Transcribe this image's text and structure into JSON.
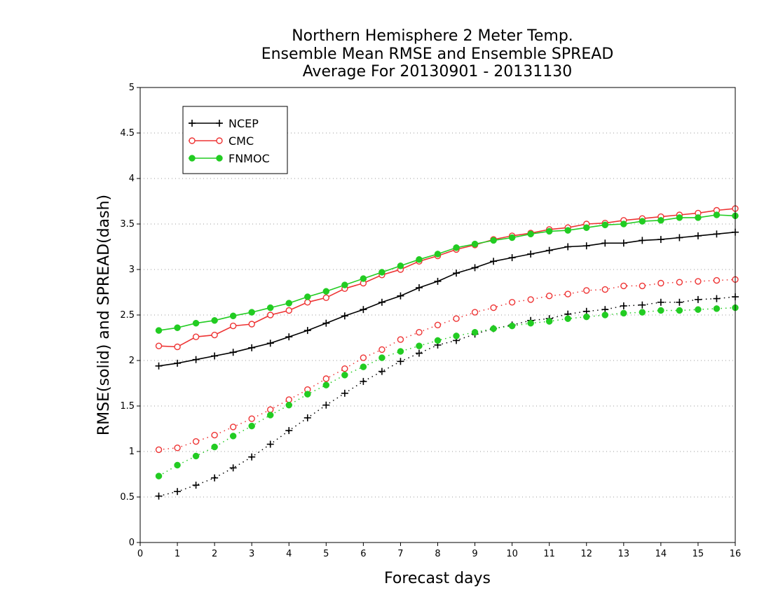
{
  "chart_data": {
    "type": "line",
    "title_lines": [
      "Northern Hemisphere 2 Meter Temp.",
      "Ensemble Mean RMSE and Ensemble SPREAD",
      "Average For 20130901 - 20131130"
    ],
    "xlabel": "Forecast days",
    "ylabel": "RMSE(solid) and SPREAD(dash)",
    "xlim": [
      0,
      16
    ],
    "ylim": [
      0,
      5
    ],
    "x_ticks": [
      "0",
      "1",
      "2",
      "3",
      "4",
      "5",
      "6",
      "7",
      "8",
      "9",
      "10",
      "11",
      "12",
      "13",
      "14",
      "15",
      "16"
    ],
    "y_ticks": [
      "0",
      "0.5",
      "1",
      "1.5",
      "2",
      "2.5",
      "3",
      "3.5",
      "4",
      "4.5",
      "5"
    ],
    "grid": "horizontal dotted",
    "legend_position": "top-left",
    "legend": [
      {
        "label": "NCEP",
        "color": "#000000",
        "marker": "plus"
      },
      {
        "label": "CMC",
        "color": "#ee3333",
        "marker": "open-circle"
      },
      {
        "label": "FNMOC",
        "color": "#22cc22",
        "marker": "filled-circle"
      }
    ],
    "x": [
      0.5,
      1,
      1.5,
      2,
      2.5,
      3,
      3.5,
      4,
      4.5,
      5,
      5.5,
      6,
      6.5,
      7,
      7.5,
      8,
      8.5,
      9,
      9.5,
      10,
      10.5,
      11,
      11.5,
      12,
      12.5,
      13,
      13.5,
      14,
      14.5,
      15,
      15.5,
      16
    ],
    "series": [
      {
        "name": "NCEP",
        "style": "solid",
        "color": "#000000",
        "marker": "plus",
        "values": [
          1.94,
          1.97,
          2.01,
          2.05,
          2.09,
          2.14,
          2.19,
          2.26,
          2.33,
          2.41,
          2.49,
          2.56,
          2.64,
          2.71,
          2.8,
          2.87,
          2.96,
          3.02,
          3.09,
          3.13,
          3.17,
          3.21,
          3.25,
          3.26,
          3.29,
          3.29,
          3.32,
          3.33,
          3.35,
          3.37,
          3.39,
          3.41
        ]
      },
      {
        "name": "CMC",
        "style": "solid",
        "color": "#ee3333",
        "marker": "open-circle",
        "values": [
          2.16,
          2.15,
          2.26,
          2.28,
          2.38,
          2.4,
          2.5,
          2.55,
          2.64,
          2.69,
          2.79,
          2.85,
          2.94,
          3.0,
          3.09,
          3.15,
          3.22,
          3.27,
          3.33,
          3.37,
          3.4,
          3.44,
          3.46,
          3.5,
          3.51,
          3.54,
          3.56,
          3.58,
          3.6,
          3.62,
          3.65,
          3.67
        ]
      },
      {
        "name": "FNMOC",
        "style": "solid",
        "color": "#22cc22",
        "marker": "filled-circle",
        "values": [
          2.33,
          2.36,
          2.41,
          2.44,
          2.49,
          2.53,
          2.58,
          2.63,
          2.7,
          2.76,
          2.83,
          2.9,
          2.97,
          3.04,
          3.11,
          3.17,
          3.24,
          3.28,
          3.32,
          3.35,
          3.39,
          3.42,
          3.43,
          3.46,
          3.49,
          3.5,
          3.53,
          3.54,
          3.57,
          3.57,
          3.6,
          3.59
        ]
      },
      {
        "name": "NCEP",
        "style": "dash",
        "color": "#000000",
        "marker": "plus",
        "values": [
          0.51,
          0.56,
          0.63,
          0.71,
          0.82,
          0.94,
          1.08,
          1.23,
          1.37,
          1.51,
          1.64,
          1.77,
          1.88,
          1.99,
          2.08,
          2.17,
          2.22,
          2.29,
          2.35,
          2.39,
          2.44,
          2.46,
          2.51,
          2.54,
          2.56,
          2.6,
          2.61,
          2.64,
          2.64,
          2.67,
          2.68,
          2.7
        ]
      },
      {
        "name": "CMC",
        "style": "dash",
        "color": "#ee3333",
        "marker": "open-circle",
        "values": [
          1.02,
          1.04,
          1.11,
          1.18,
          1.27,
          1.36,
          1.46,
          1.57,
          1.68,
          1.8,
          1.91,
          2.03,
          2.12,
          2.23,
          2.31,
          2.39,
          2.46,
          2.53,
          2.58,
          2.64,
          2.67,
          2.71,
          2.73,
          2.77,
          2.78,
          2.82,
          2.82,
          2.85,
          2.86,
          2.87,
          2.88,
          2.89
        ]
      },
      {
        "name": "FNMOC",
        "style": "dash",
        "color": "#22cc22",
        "marker": "filled-circle",
        "values": [
          0.73,
          0.85,
          0.95,
          1.05,
          1.17,
          1.28,
          1.4,
          1.51,
          1.63,
          1.73,
          1.84,
          1.93,
          2.03,
          2.1,
          2.16,
          2.22,
          2.27,
          2.31,
          2.35,
          2.38,
          2.41,
          2.43,
          2.46,
          2.48,
          2.5,
          2.52,
          2.53,
          2.55,
          2.55,
          2.56,
          2.57,
          2.58
        ]
      }
    ]
  }
}
